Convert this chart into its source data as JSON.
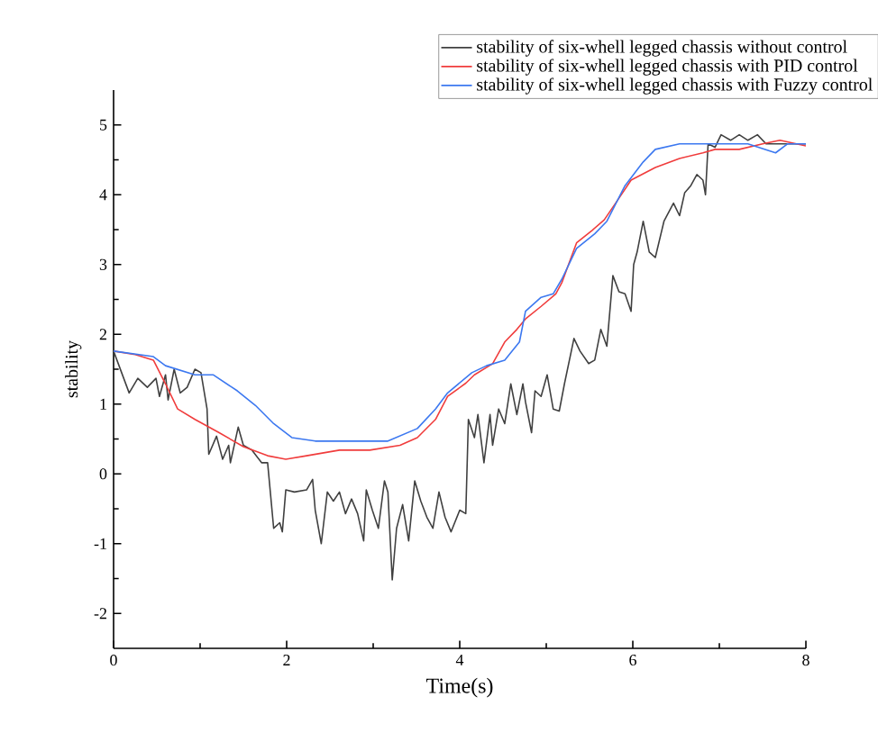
{
  "chart_data": {
    "type": "line",
    "xlabel": "Time(s)",
    "ylabel": "stability",
    "xlim": [
      0,
      8
    ],
    "ylim": [
      -2.5,
      5.5
    ],
    "xticks": [
      0,
      2,
      4,
      6,
      8
    ],
    "yticks": [
      -2,
      -1,
      0,
      1,
      2,
      3,
      4,
      5
    ],
    "legend": "top right",
    "grid": false,
    "marker": "none",
    "line_style": "solid",
    "series": [
      {
        "name": "stability of six-whell legged chassis without control",
        "color": "#404040",
        "x": [
          0,
          0.18,
          0.28,
          0.39,
          0.49,
          0.53,
          0.6,
          0.63,
          0.7,
          0.77,
          0.85,
          0.94,
          1.01,
          1.08,
          1.1,
          1.19,
          1.26,
          1.33,
          1.35,
          1.44,
          1.5,
          1.6,
          1.71,
          1.78,
          1.85,
          1.92,
          1.95,
          1.99,
          2.09,
          2.23,
          2.3,
          2.33,
          2.4,
          2.47,
          2.54,
          2.61,
          2.68,
          2.75,
          2.82,
          2.89,
          2.92,
          2.99,
          3.06,
          3.13,
          3.17,
          3.22,
          3.27,
          3.34,
          3.41,
          3.48,
          3.55,
          3.62,
          3.69,
          3.76,
          3.83,
          3.9,
          4.0,
          4.07,
          4.1,
          4.17,
          4.21,
          4.28,
          4.35,
          4.38,
          4.45,
          4.52,
          4.59,
          4.66,
          4.73,
          4.76,
          4.83,
          4.87,
          4.94,
          5.01,
          5.08,
          5.15,
          5.21,
          5.32,
          5.39,
          5.49,
          5.56,
          5.63,
          5.7,
          5.77,
          5.84,
          5.91,
          5.98,
          6.01,
          6.05,
          6.12,
          6.19,
          6.26,
          6.36,
          6.47,
          6.54,
          6.6,
          6.67,
          6.74,
          6.81,
          6.84,
          6.87,
          6.95,
          7.02,
          7.13,
          7.23,
          7.33,
          7.44,
          7.54,
          7.7,
          8.0
        ],
        "values": [
          1.76,
          1.16,
          1.37,
          1.24,
          1.37,
          1.11,
          1.42,
          1.06,
          1.5,
          1.16,
          1.24,
          1.5,
          1.45,
          0.93,
          0.28,
          0.54,
          0.21,
          0.41,
          0.16,
          0.67,
          0.41,
          0.34,
          0.16,
          0.16,
          -0.78,
          -0.7,
          -0.83,
          -0.23,
          -0.26,
          -0.23,
          -0.08,
          -0.52,
          -1.0,
          -0.26,
          -0.39,
          -0.26,
          -0.57,
          -0.36,
          -0.57,
          -0.96,
          -0.23,
          -0.52,
          -0.78,
          -0.1,
          -0.26,
          -1.52,
          -0.78,
          -0.44,
          -0.96,
          -0.1,
          -0.39,
          -0.62,
          -0.78,
          -0.26,
          -0.62,
          -0.83,
          -0.52,
          -0.57,
          0.78,
          0.52,
          0.85,
          0.16,
          0.85,
          0.41,
          0.93,
          0.72,
          1.29,
          0.85,
          1.29,
          1.03,
          0.59,
          1.19,
          1.11,
          1.42,
          0.93,
          0.9,
          1.29,
          1.94,
          1.76,
          1.58,
          1.63,
          2.07,
          1.83,
          2.84,
          2.61,
          2.58,
          2.33,
          3.0,
          3.18,
          3.62,
          3.18,
          3.1,
          3.62,
          3.88,
          3.7,
          4.03,
          4.13,
          4.29,
          4.21,
          4.0,
          4.73,
          4.68,
          4.86,
          4.78,
          4.86,
          4.78,
          4.86,
          4.73,
          4.73,
          4.73
        ]
      },
      {
        "name": "stability of six-whell legged chassis with PID control",
        "color": "#f03c3c",
        "x": [
          0,
          0.25,
          0.46,
          0.6,
          0.74,
          0.94,
          1.22,
          1.5,
          1.78,
          1.99,
          2.23,
          2.61,
          2.96,
          3.31,
          3.51,
          3.72,
          3.86,
          4.07,
          4.17,
          4.38,
          4.52,
          4.66,
          4.76,
          4.94,
          5.11,
          5.18,
          5.35,
          5.53,
          5.67,
          5.84,
          5.98,
          6.26,
          6.54,
          6.81,
          6.95,
          7.23,
          7.5,
          7.7,
          8.0
        ],
        "values": [
          1.76,
          1.71,
          1.63,
          1.29,
          0.93,
          0.78,
          0.59,
          0.39,
          0.26,
          0.21,
          0.26,
          0.34,
          0.34,
          0.41,
          0.52,
          0.78,
          1.11,
          1.3,
          1.42,
          1.58,
          1.89,
          2.07,
          2.22,
          2.4,
          2.58,
          2.74,
          3.31,
          3.49,
          3.64,
          3.95,
          4.21,
          4.39,
          4.52,
          4.6,
          4.65,
          4.65,
          4.73,
          4.78,
          4.7
        ]
      },
      {
        "name": "stability of six-whell legged chassis with Fuzzy control",
        "color": "#3c78f0",
        "x": [
          0,
          0.46,
          0.6,
          0.94,
          1.15,
          1.43,
          1.64,
          1.85,
          2.06,
          2.33,
          2.75,
          3.17,
          3.51,
          3.72,
          3.86,
          4.14,
          4.31,
          4.52,
          4.69,
          4.76,
          4.94,
          5.08,
          5.18,
          5.35,
          5.56,
          5.7,
          5.91,
          6.12,
          6.26,
          6.54,
          6.95,
          7.33,
          7.65,
          7.79,
          8.0
        ],
        "values": [
          1.76,
          1.68,
          1.55,
          1.42,
          1.42,
          1.19,
          0.98,
          0.72,
          0.52,
          0.47,
          0.47,
          0.47,
          0.65,
          0.93,
          1.16,
          1.45,
          1.55,
          1.63,
          1.89,
          2.33,
          2.53,
          2.58,
          2.79,
          3.23,
          3.44,
          3.62,
          4.13,
          4.47,
          4.65,
          4.73,
          4.73,
          4.73,
          4.6,
          4.73,
          4.73
        ]
      }
    ]
  }
}
